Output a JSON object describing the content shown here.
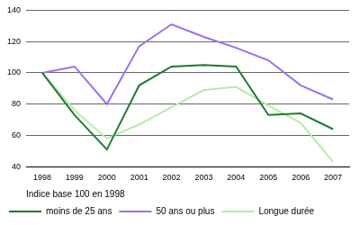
{
  "chart_data": {
    "type": "line",
    "annotation": "Indice base 100 en 1998",
    "categories": [
      "1998",
      "1999",
      "2000",
      "2001",
      "2002",
      "2003",
      "2004",
      "2005",
      "2006",
      "2007"
    ],
    "series": [
      {
        "name": "moins de 25 ans",
        "color": "#1e7a34",
        "values": [
          100,
          73,
          51,
          92,
          104,
          105,
          104,
          73,
          74,
          64
        ]
      },
      {
        "name": "50 ans ou plus",
        "color": "#9b6ff0",
        "values": [
          100,
          104,
          80,
          117,
          131,
          123,
          116,
          108,
          92,
          83
        ]
      },
      {
        "name": "Longue durée",
        "color": "#b5eca6",
        "values": [
          100,
          76,
          58,
          67,
          78,
          89,
          91,
          79,
          68,
          43
        ]
      }
    ],
    "ylim": [
      40,
      140
    ],
    "yticks": [
      40,
      60,
      80,
      100,
      120,
      140
    ],
    "grid": true,
    "legend": "bottom"
  }
}
